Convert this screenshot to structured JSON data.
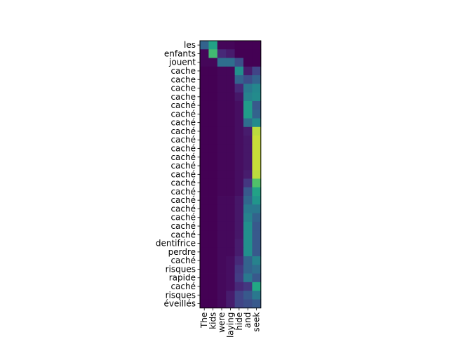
{
  "chart_data": {
    "type": "heatmap",
    "colormap": "viridis",
    "grid": false,
    "x_labels": [
      "The",
      "kids",
      "were",
      "playing",
      "hide",
      "and",
      "seek"
    ],
    "y_labels": [
      "les",
      "enfants",
      "jouent",
      "cache",
      "cache",
      "cache",
      "cache",
      "caché",
      "caché",
      "caché",
      "caché",
      "caché",
      "caché",
      "caché",
      "caché",
      "caché",
      "caché",
      "caché",
      "caché",
      "caché",
      "caché",
      "caché",
      "caché",
      "dentifrice",
      "perdre",
      "caché",
      "risques",
      "rapide",
      "caché",
      "risques",
      "éveillés"
    ],
    "values": [
      [
        0.4,
        0.72,
        0.02,
        0.02,
        0.0,
        0.0,
        0.0
      ],
      [
        0.02,
        0.82,
        0.15,
        0.1,
        0.0,
        0.0,
        0.0
      ],
      [
        0.02,
        0.02,
        0.45,
        0.45,
        0.3,
        0.0,
        0.0
      ],
      [
        0.0,
        0.0,
        0.02,
        0.02,
        0.62,
        0.1,
        0.25
      ],
      [
        0.0,
        0.0,
        0.02,
        0.02,
        0.4,
        0.3,
        0.4
      ],
      [
        0.0,
        0.0,
        0.02,
        0.02,
        0.15,
        0.5,
        0.58
      ],
      [
        0.0,
        0.0,
        0.02,
        0.02,
        0.08,
        0.55,
        0.6
      ],
      [
        0.0,
        0.0,
        0.02,
        0.02,
        0.05,
        0.68,
        0.35
      ],
      [
        0.0,
        0.0,
        0.02,
        0.02,
        0.05,
        0.68,
        0.4
      ],
      [
        0.0,
        0.0,
        0.02,
        0.02,
        0.05,
        0.45,
        0.6
      ],
      [
        0.0,
        0.0,
        0.02,
        0.02,
        0.05,
        0.1,
        0.95
      ],
      [
        0.0,
        0.0,
        0.02,
        0.02,
        0.05,
        0.08,
        0.96
      ],
      [
        0.0,
        0.0,
        0.02,
        0.02,
        0.05,
        0.08,
        0.96
      ],
      [
        0.0,
        0.0,
        0.02,
        0.02,
        0.05,
        0.08,
        0.96
      ],
      [
        0.0,
        0.0,
        0.02,
        0.02,
        0.05,
        0.08,
        0.96
      ],
      [
        0.0,
        0.0,
        0.02,
        0.02,
        0.05,
        0.1,
        0.95
      ],
      [
        0.0,
        0.0,
        0.02,
        0.02,
        0.05,
        0.2,
        0.85
      ],
      [
        0.0,
        0.0,
        0.02,
        0.02,
        0.05,
        0.35,
        0.72
      ],
      [
        0.0,
        0.0,
        0.03,
        0.03,
        0.08,
        0.42,
        0.65
      ],
      [
        0.0,
        0.0,
        0.03,
        0.03,
        0.08,
        0.5,
        0.5
      ],
      [
        0.0,
        0.0,
        0.03,
        0.03,
        0.08,
        0.55,
        0.4
      ],
      [
        0.0,
        0.0,
        0.03,
        0.03,
        0.08,
        0.62,
        0.35
      ],
      [
        0.0,
        0.0,
        0.03,
        0.03,
        0.08,
        0.62,
        0.35
      ],
      [
        0.0,
        0.0,
        0.03,
        0.03,
        0.1,
        0.62,
        0.35
      ],
      [
        0.0,
        0.0,
        0.03,
        0.03,
        0.1,
        0.62,
        0.35
      ],
      [
        0.0,
        0.0,
        0.03,
        0.05,
        0.15,
        0.4,
        0.55
      ],
      [
        0.0,
        0.0,
        0.03,
        0.05,
        0.2,
        0.4,
        0.45
      ],
      [
        0.0,
        0.0,
        0.03,
        0.05,
        0.22,
        0.5,
        0.35
      ],
      [
        0.0,
        0.0,
        0.03,
        0.05,
        0.15,
        0.2,
        0.75
      ],
      [
        0.0,
        0.0,
        0.03,
        0.1,
        0.25,
        0.35,
        0.5
      ],
      [
        0.0,
        0.0,
        0.03,
        0.1,
        0.25,
        0.3,
        0.35
      ]
    ]
  }
}
